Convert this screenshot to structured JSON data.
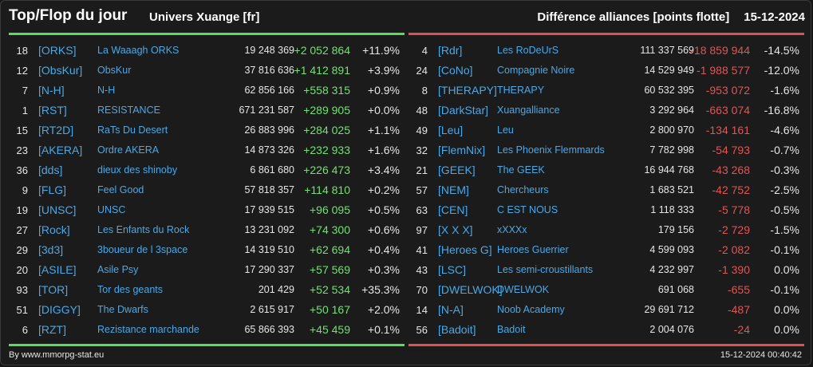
{
  "header": {
    "title": "Top/Flop du jour",
    "server": "Univers Xuange [fr]",
    "subtitle": "Différence alliances [points flotte]",
    "date": "15-12-2024"
  },
  "colors": {
    "gain": "#6fe36f",
    "loss": "#e05555",
    "link": "#4aa8e8",
    "top_bar": "#54e05a",
    "flop_bar": "#e05050"
  },
  "top": [
    {
      "rank": "18",
      "tag": "[ORKS]",
      "name": "La Waaagh ORKS",
      "points": "19 248 369",
      "diff": "+2 052 864",
      "pct": "+11.9%"
    },
    {
      "rank": "12",
      "tag": "[ObsKur]",
      "name": "ObsKur",
      "points": "37 816 636",
      "diff": "+1 412 891",
      "pct": "+3.9%"
    },
    {
      "rank": "7",
      "tag": "[N-H]",
      "name": "N-H",
      "points": "62 856 166",
      "diff": "+558 315",
      "pct": "+0.9%"
    },
    {
      "rank": "1",
      "tag": "[RST]",
      "name": "RESISTANCE",
      "points": "671 231 587",
      "diff": "+289 905",
      "pct": "+0.0%"
    },
    {
      "rank": "15",
      "tag": "[RT2D]",
      "name": "RaTs Du Desert",
      "points": "26 883 996",
      "diff": "+284 025",
      "pct": "+1.1%"
    },
    {
      "rank": "23",
      "tag": "[AKERA]",
      "name": "Ordre AKERA",
      "points": "14 873 326",
      "diff": "+232 933",
      "pct": "+1.6%"
    },
    {
      "rank": "36",
      "tag": "[dds]",
      "name": "dieux des shinoby",
      "points": "6 861 680",
      "diff": "+226 473",
      "pct": "+3.4%"
    },
    {
      "rank": "9",
      "tag": "[FLG]",
      "name": "Feel Good",
      "points": "57 818 357",
      "diff": "+114 810",
      "pct": "+0.2%"
    },
    {
      "rank": "19",
      "tag": "[UNSC]",
      "name": "UNSC",
      "points": "17 939 515",
      "diff": "+96 095",
      "pct": "+0.5%"
    },
    {
      "rank": "27",
      "tag": "[Rock]",
      "name": "Les Enfants du Rock",
      "points": "13 231 092",
      "diff": "+74 300",
      "pct": "+0.6%"
    },
    {
      "rank": "29",
      "tag": "[3d3]",
      "name": "3boueur de l 3space",
      "points": "14 319 510",
      "diff": "+62 694",
      "pct": "+0.4%"
    },
    {
      "rank": "20",
      "tag": "[ASILE]",
      "name": "Asile Psy",
      "points": "17 290 337",
      "diff": "+57 569",
      "pct": "+0.3%"
    },
    {
      "rank": "93",
      "tag": "[TOR]",
      "name": "Tor des geants",
      "points": "201 429",
      "diff": "+52 534",
      "pct": "+35.3%"
    },
    {
      "rank": "51",
      "tag": "[DIGGY]",
      "name": "The Dwarfs",
      "points": "2 615 917",
      "diff": "+50 167",
      "pct": "+2.0%"
    },
    {
      "rank": "6",
      "tag": "[RZT]",
      "name": "Rezistance marchande",
      "points": "65 866 393",
      "diff": "+45 459",
      "pct": "+0.1%"
    }
  ],
  "flop": [
    {
      "rank": "4",
      "tag": "[Rdr]",
      "name": "Les RoDeUrS",
      "points": "111 337 569",
      "diff": "-18 859 944",
      "pct": "-14.5%"
    },
    {
      "rank": "24",
      "tag": "[CoNo]",
      "name": "Compagnie Noire",
      "points": "14 529 949",
      "diff": "-1 988 577",
      "pct": "-12.0%"
    },
    {
      "rank": "8",
      "tag": "[THERAPY]",
      "name": "THERAPY",
      "points": "60 532 395",
      "diff": "-953 072",
      "pct": "-1.6%"
    },
    {
      "rank": "48",
      "tag": "[DarkStar]",
      "name": "Xuangalliance",
      "points": "3 292 964",
      "diff": "-663 074",
      "pct": "-16.8%"
    },
    {
      "rank": "49",
      "tag": "[Leu]",
      "name": "Leu",
      "points": "2 800 970",
      "diff": "-134 161",
      "pct": "-4.6%"
    },
    {
      "rank": "32",
      "tag": "[FlemNix]",
      "name": "Les Phoenix Flemmards",
      "points": "7 782 998",
      "diff": "-54 793",
      "pct": "-0.7%"
    },
    {
      "rank": "21",
      "tag": "[GEEK]",
      "name": "The GEEK",
      "points": "16 944 768",
      "diff": "-43 268",
      "pct": "-0.3%"
    },
    {
      "rank": "57",
      "tag": "[NEM]",
      "name": "Chercheurs",
      "points": "1 683 521",
      "diff": "-42 752",
      "pct": "-2.5%"
    },
    {
      "rank": "63",
      "tag": "[CEN]",
      "name": "C EST NOUS",
      "points": "1 118 333",
      "diff": "-5 778",
      "pct": "-0.5%"
    },
    {
      "rank": "97",
      "tag": "[X X X]",
      "name": "xXXXx",
      "points": "179 156",
      "diff": "-2 729",
      "pct": "-1.5%"
    },
    {
      "rank": "41",
      "tag": "[Heroes G]",
      "name": "Heroes Guerrier",
      "points": "4 599 093",
      "diff": "-2 082",
      "pct": "-0.1%"
    },
    {
      "rank": "43",
      "tag": "[LSC]",
      "name": "Les semi-croustillants",
      "points": "4 232 997",
      "diff": "-1 390",
      "pct": "0.0%"
    },
    {
      "rank": "70",
      "tag": "[DWELWOK]",
      "name": "DWELWOK",
      "points": "691 068",
      "diff": "-655",
      "pct": "-0.1%"
    },
    {
      "rank": "14",
      "tag": "[N-A]",
      "name": "Noob Academy",
      "points": "29 691 712",
      "diff": "-487",
      "pct": "0.0%"
    },
    {
      "rank": "56",
      "tag": "[Badoit]",
      "name": "Badoit",
      "points": "2 004 076",
      "diff": "-24",
      "pct": "0.0%"
    }
  ],
  "footer": {
    "source": "By www.mmorpg-stat.eu",
    "timestamp": "15-12-2024 00:40:42"
  }
}
